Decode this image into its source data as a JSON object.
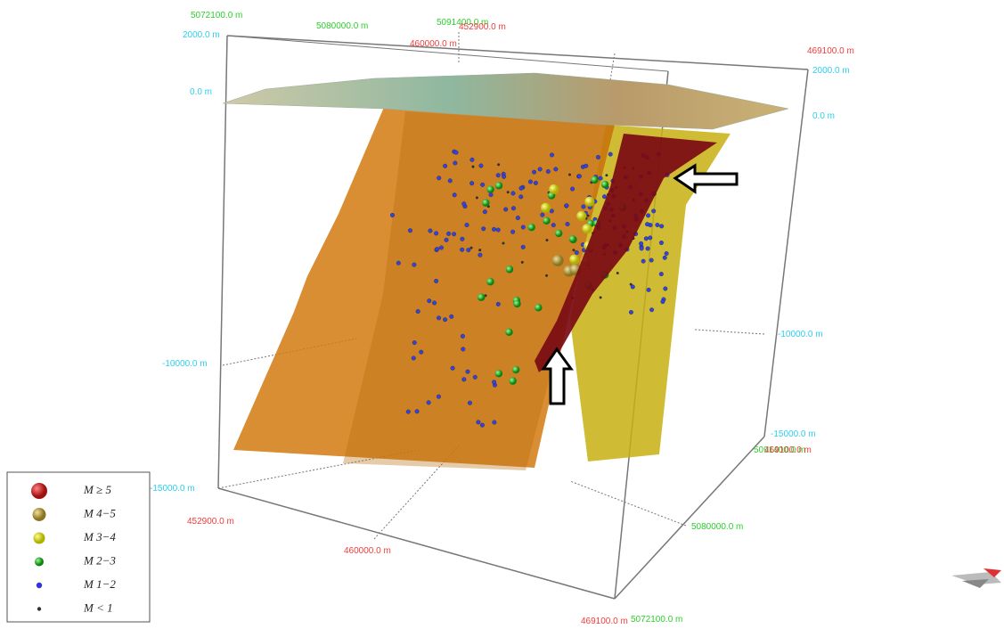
{
  "axes": {
    "labels": [
      "5072100.0 m",
      "2000.0 m",
      "5080000.0 m",
      "5091400.0 m",
      "452900.0 m",
      "460000.0 m",
      "469100.0 m",
      "2000.0 m",
      "0.0 m",
      "0.0 m",
      "-10000.0 m",
      "-10000.0 m",
      "-15000.0 m",
      "5091400.0 m",
      "469100.0 m",
      "-15000.0 m",
      "452900.0 m",
      "5080000.0 m",
      "460000.0 m",
      "469100.0 m",
      "5072100.0 m"
    ]
  },
  "legend": {
    "items": [
      "M ≥ 5",
      "M 4−5",
      "M 3−4",
      "M 2−3",
      "M 1−2",
      "M < 1"
    ]
  }
}
